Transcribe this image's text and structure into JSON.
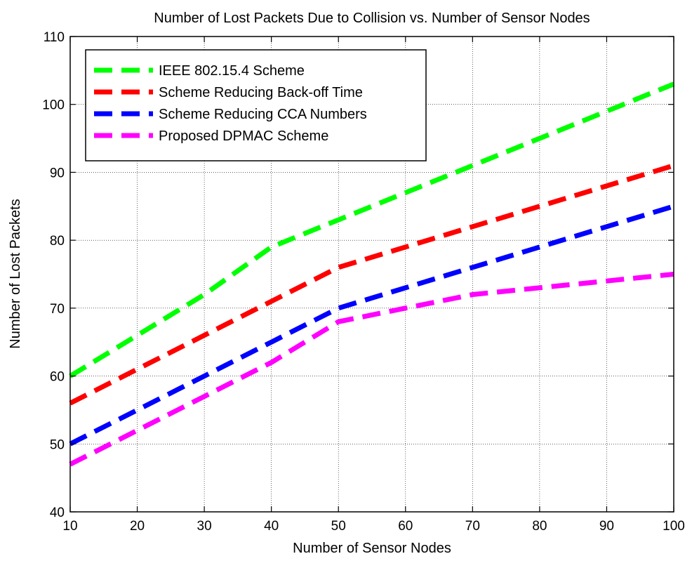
{
  "chart_data": {
    "type": "line",
    "title": "Number of Lost Packets Due to Collision vs. Number of Sensor Nodes",
    "xlabel": "Number of Sensor Nodes",
    "ylabel": "Number of Lost Packets",
    "xlim": [
      10,
      100
    ],
    "ylim": [
      40,
      110
    ],
    "xticks": [
      10,
      20,
      30,
      40,
      50,
      60,
      70,
      80,
      90,
      100
    ],
    "yticks": [
      40,
      50,
      60,
      70,
      80,
      90,
      100,
      110
    ],
    "grid": true,
    "legend_position": "top-left",
    "x": [
      10,
      20,
      30,
      40,
      50,
      60,
      70,
      80,
      90,
      100
    ],
    "series": [
      {
        "name": "IEEE 802.15.4 Scheme",
        "color": "#00ff00",
        "values": [
          60,
          66,
          72,
          79,
          83,
          87,
          91,
          95,
          99,
          103
        ]
      },
      {
        "name": "Scheme Reducing Back-off Time",
        "color": "#ff0000",
        "values": [
          56,
          61,
          66,
          71,
          76,
          79,
          82,
          85,
          88,
          91
        ]
      },
      {
        "name": "Scheme Reducing CCA Numbers",
        "color": "#0000ff",
        "values": [
          50,
          55,
          60,
          65,
          70,
          73,
          76,
          79,
          82,
          85
        ]
      },
      {
        "name": "Proposed DPMAC Scheme",
        "color": "#ff00ff",
        "values": [
          47,
          52,
          57,
          62,
          68,
          70,
          72,
          73,
          74,
          75
        ]
      }
    ]
  }
}
